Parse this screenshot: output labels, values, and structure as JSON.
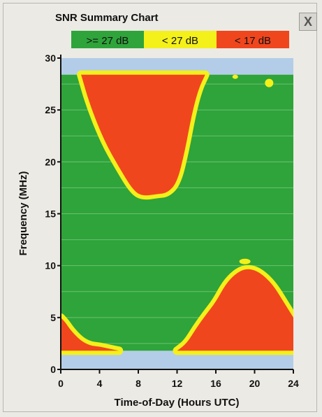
{
  "window": {
    "close_label": "X"
  },
  "colors": {
    "good": "#2ea43a",
    "marginal": "#f4f01a",
    "poor": "#f0461e",
    "band_edge": "#b3cde8",
    "background": "#eceae4",
    "grid": "#6fbf75"
  },
  "chart_data": {
    "type": "heatmap",
    "title": "SNR Summary Chart",
    "xlabel": "Time-of-Day (Hours UTC)",
    "ylabel": "Frequency (MHz)",
    "xlim": [
      0,
      24
    ],
    "ylim": [
      0,
      30
    ],
    "xticks": [
      0,
      4,
      8,
      12,
      16,
      20,
      24
    ],
    "yticks": [
      0,
      5,
      10,
      15,
      20,
      25,
      30
    ],
    "ytick_labels": [
      "0",
      "5",
      "10",
      "15",
      "20",
      "25",
      "30"
    ],
    "grid": true,
    "frequency_range_mhz": [
      1.8,
      28.4
    ],
    "legend": [
      {
        "label": ">= 27 dB",
        "color": "#2ea43a"
      },
      {
        "label": "< 27 dB",
        "color": "#f4f01a"
      },
      {
        "label": "< 17 dB",
        "color": "#f0461e"
      }
    ],
    "regions": [
      {
        "series": "< 17 dB",
        "description_of_band": "upper frequency red region (MUF limit)",
        "lower_boundary": [
          {
            "x": 2.1,
            "y": 28.4
          },
          {
            "x": 3.0,
            "y": 25.5
          },
          {
            "x": 4.5,
            "y": 22.0
          },
          {
            "x": 6.0,
            "y": 19.5
          },
          {
            "x": 7.5,
            "y": 17.2
          },
          {
            "x": 8.5,
            "y": 16.7
          },
          {
            "x": 10.0,
            "y": 16.9
          },
          {
            "x": 11.0,
            "y": 17.0
          },
          {
            "x": 12.0,
            "y": 18.0
          },
          {
            "x": 12.8,
            "y": 21.0
          },
          {
            "x": 13.5,
            "y": 24.5
          },
          {
            "x": 14.2,
            "y": 27.0
          },
          {
            "x": 14.9,
            "y": 28.4
          }
        ]
      },
      {
        "series": "< 17 dB",
        "description_of_band": "lower frequency red region (evening LUF)",
        "upper_boundary": [
          {
            "x": 12.0,
            "y": 1.8
          },
          {
            "x": 13.0,
            "y": 2.5
          },
          {
            "x": 14.0,
            "y": 4.0
          },
          {
            "x": 15.0,
            "y": 5.3
          },
          {
            "x": 16.0,
            "y": 6.5
          },
          {
            "x": 17.0,
            "y": 8.2
          },
          {
            "x": 18.0,
            "y": 9.2
          },
          {
            "x": 19.0,
            "y": 9.7
          },
          {
            "x": 20.0,
            "y": 9.6
          },
          {
            "x": 21.0,
            "y": 9.0
          },
          {
            "x": 22.0,
            "y": 8.0
          },
          {
            "x": 23.0,
            "y": 6.5
          },
          {
            "x": 24.0,
            "y": 5.0
          }
        ]
      },
      {
        "series": "< 17 dB",
        "description_of_band": "lower frequency red region (early morning)",
        "upper_boundary": [
          {
            "x": 0.0,
            "y": 5.0
          },
          {
            "x": 0.5,
            "y": 4.5
          },
          {
            "x": 1.0,
            "y": 3.8
          },
          {
            "x": 2.0,
            "y": 2.8
          },
          {
            "x": 3.0,
            "y": 2.3
          },
          {
            "x": 4.0,
            "y": 2.2
          },
          {
            "x": 5.0,
            "y": 2.0
          },
          {
            "x": 6.0,
            "y": 1.8
          }
        ]
      }
    ]
  }
}
